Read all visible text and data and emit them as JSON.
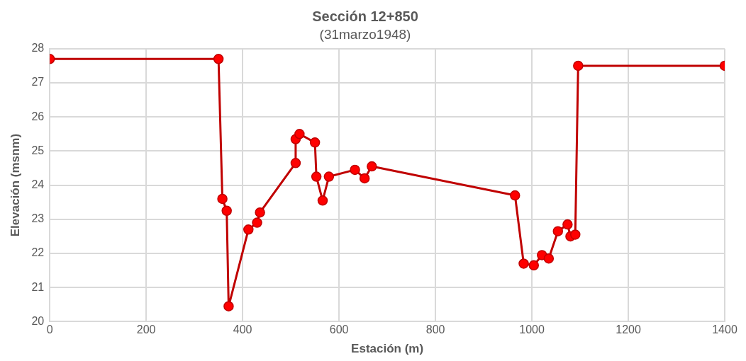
{
  "chart_data": {
    "type": "line",
    "title": "Sección 12+850",
    "subtitle": "(31marzo1948)",
    "xlabel": "Estación (m)",
    "ylabel": "Elevación (msnm)",
    "xlim": [
      0,
      1400
    ],
    "xticks": [
      0,
      200,
      400,
      600,
      800,
      1000,
      1200,
      1400
    ],
    "ylim": [
      20,
      28
    ],
    "yticks": [
      20,
      21,
      22,
      23,
      24,
      25,
      26,
      27,
      28
    ],
    "grid": true,
    "legend": false,
    "marker": "circle",
    "line_style": "solid",
    "series": [
      {
        "color": "#c00000",
        "x": [
          0,
          350,
          358,
          367,
          371,
          412,
          430,
          436,
          510,
          510,
          518,
          550,
          553,
          566,
          579,
          633,
          653,
          668,
          965,
          983,
          1004,
          1021,
          1035,
          1054,
          1074,
          1080,
          1090,
          1096,
          1400
        ],
        "values": [
          27.7,
          27.7,
          23.6,
          23.25,
          20.45,
          22.7,
          22.9,
          23.2,
          24.65,
          25.35,
          25.5,
          25.25,
          24.25,
          23.55,
          24.25,
          24.45,
          24.2,
          24.55,
          23.7,
          21.7,
          21.65,
          21.95,
          21.85,
          22.65,
          22.85,
          22.5,
          22.55,
          27.5,
          27.5
        ]
      }
    ]
  }
}
